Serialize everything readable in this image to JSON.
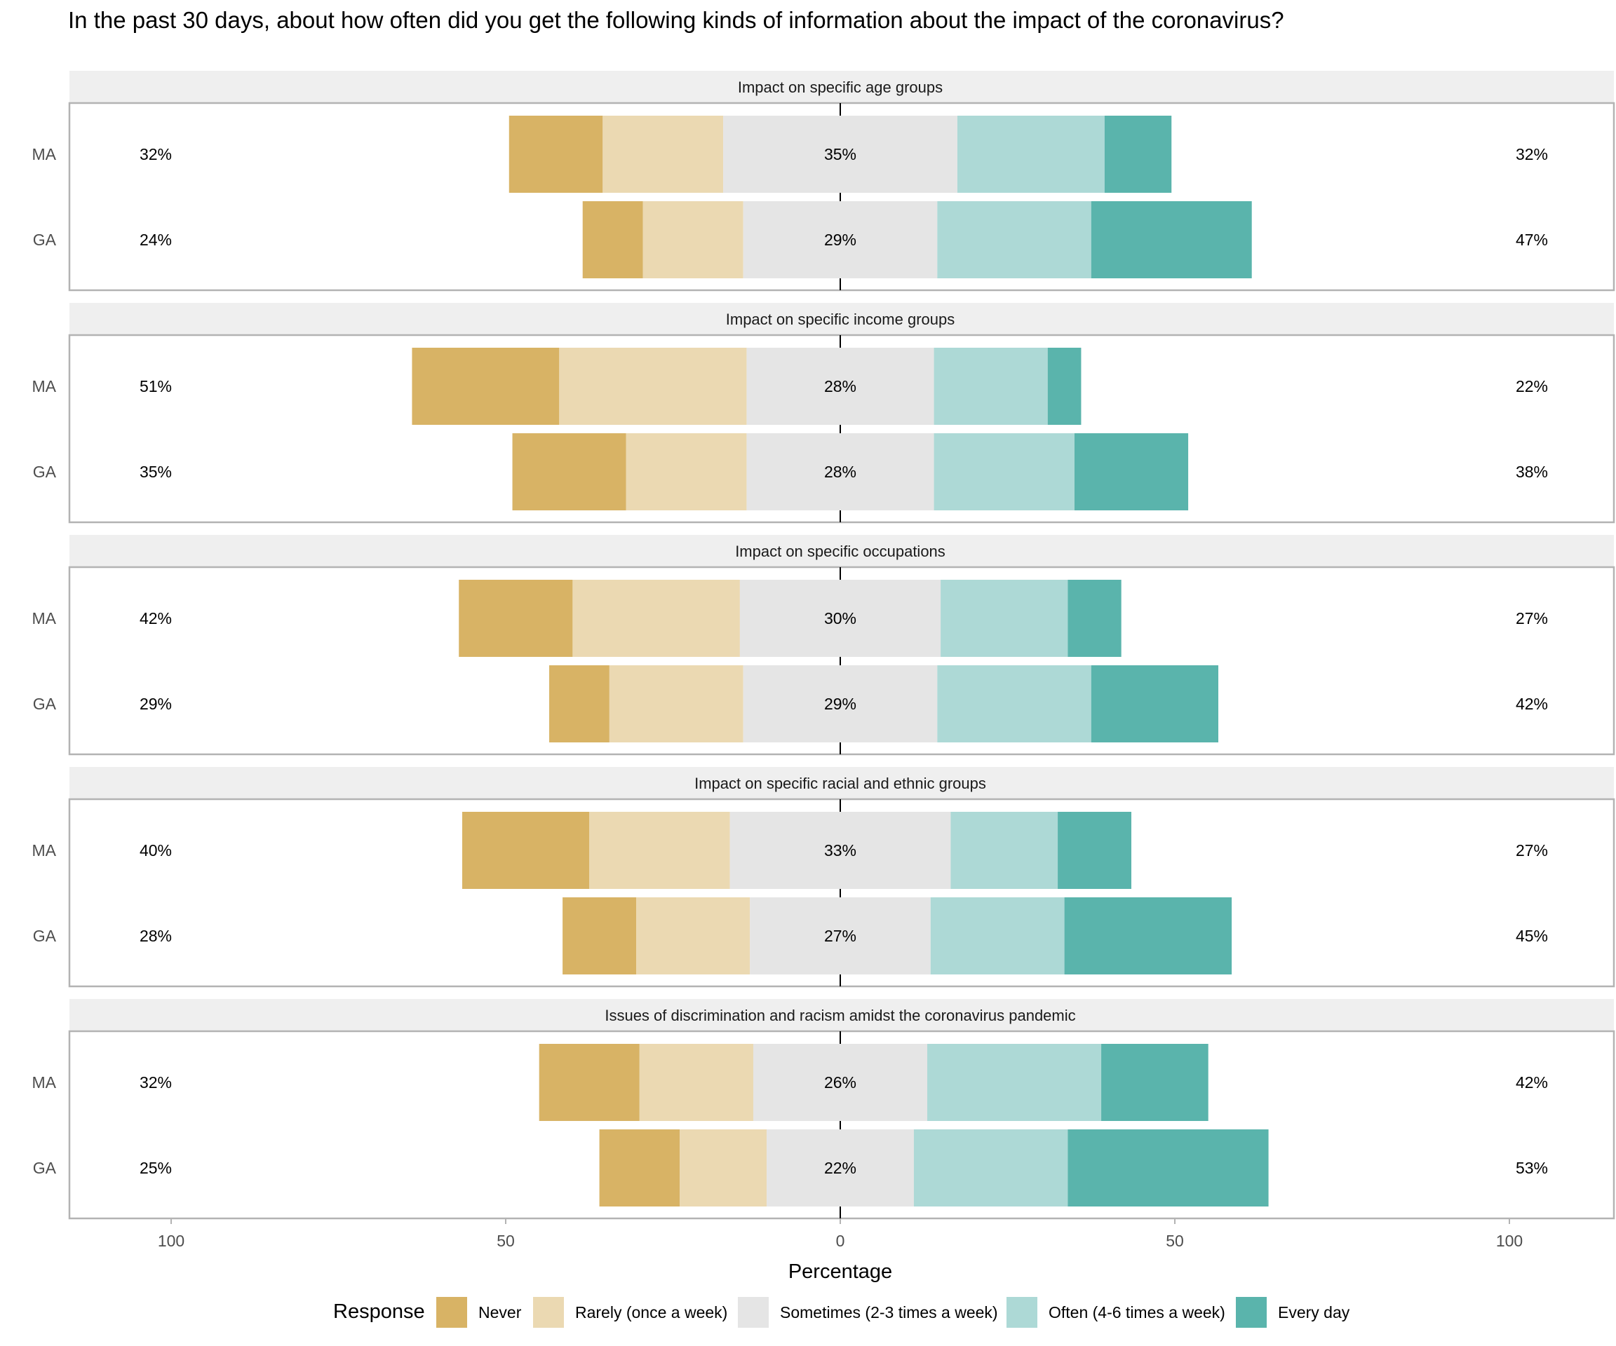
{
  "chart_data": {
    "type": "bar",
    "subtype": "diverging-stacked-likert",
    "title": "In the past 30 days, about how often did you get the following kinds of information about the impact of the coronavirus?",
    "xlabel": "Percentage",
    "ylabel": "",
    "xlim": [
      -115,
      115
    ],
    "x_ticks": [
      -100,
      -50,
      0,
      50,
      100
    ],
    "x_tick_labels": [
      "100",
      "50",
      "0",
      "50",
      "100"
    ],
    "grid": true,
    "legend": {
      "title": "Response",
      "position": "bottom",
      "entries": [
        {
          "label": "Never",
          "color": "#D8B365"
        },
        {
          "label": "Rarely (once a week)",
          "color": "#EBD9B2"
        },
        {
          "label": "Sometimes (2-3 times a week)",
          "color": "#E5E5E5"
        },
        {
          "label": "Often (4-6 times a week)",
          "color": "#ADD9D6"
        },
        {
          "label": "Every day",
          "color": "#5AB4AC"
        }
      ]
    },
    "categories": [
      "MA",
      "GA"
    ],
    "panels": [
      {
        "title": "Impact on specific age groups",
        "rows": [
          {
            "label": "MA",
            "values": [
              14,
              18,
              35,
              22,
              10
            ],
            "left_label": "32%",
            "center_label": "35%",
            "right_label": "32%"
          },
          {
            "label": "GA",
            "values": [
              9,
              15,
              29,
              23,
              24
            ],
            "left_label": "24%",
            "center_label": "29%",
            "right_label": "47%"
          }
        ]
      },
      {
        "title": "Impact on specific income groups",
        "rows": [
          {
            "label": "MA",
            "values": [
              22,
              28,
              28,
              17,
              5
            ],
            "left_label": "51%",
            "center_label": "28%",
            "right_label": "22%"
          },
          {
            "label": "GA",
            "values": [
              17,
              18,
              28,
              21,
              17
            ],
            "left_label": "35%",
            "center_label": "28%",
            "right_label": "38%"
          }
        ]
      },
      {
        "title": "Impact on specific occupations",
        "rows": [
          {
            "label": "MA",
            "values": [
              17,
              25,
              30,
              19,
              8
            ],
            "left_label": "42%",
            "center_label": "30%",
            "right_label": "27%"
          },
          {
            "label": "GA",
            "values": [
              9,
              20,
              29,
              23,
              19
            ],
            "left_label": "29%",
            "center_label": "29%",
            "right_label": "42%"
          }
        ]
      },
      {
        "title": "Impact on specific racial and ethnic groups",
        "rows": [
          {
            "label": "MA",
            "values": [
              19,
              21,
              33,
              16,
              11
            ],
            "left_label": "40%",
            "center_label": "33%",
            "right_label": "27%"
          },
          {
            "label": "GA",
            "values": [
              11,
              17,
              27,
              20,
              25
            ],
            "left_label": "28%",
            "center_label": "27%",
            "right_label": "45%"
          }
        ]
      },
      {
        "title": "Issues of discrimination and racism amidst the coronavirus pandemic",
        "rows": [
          {
            "label": "MA",
            "values": [
              15,
              17,
              26,
              26,
              16
            ],
            "left_label": "32%",
            "center_label": "26%",
            "right_label": "42%"
          },
          {
            "label": "GA",
            "values": [
              12,
              13,
              22,
              23,
              30
            ],
            "left_label": "25%",
            "center_label": "22%",
            "right_label": "53%"
          }
        ]
      }
    ]
  },
  "colors": {
    "strip_bg": "#EFEFEF",
    "panel_border": "#B3B3B3",
    "zero_line": "#000000"
  }
}
